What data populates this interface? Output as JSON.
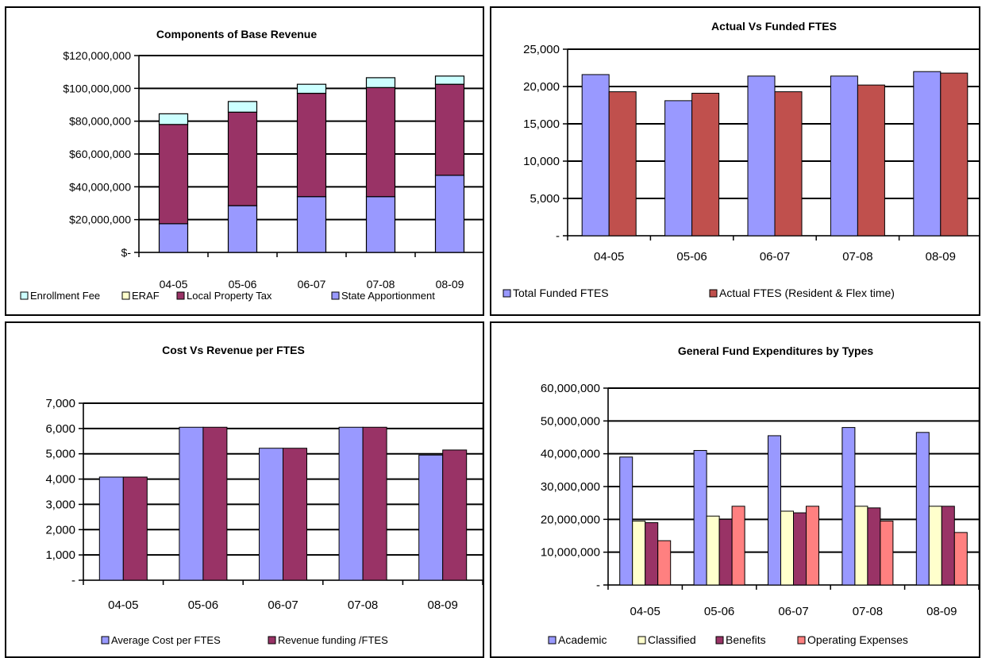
{
  "chart_data": [
    {
      "type": "bar",
      "stacked": true,
      "title": "Components of Base Revenue",
      "categories": [
        "04-05",
        "05-06",
        "06-07",
        "07-08",
        "08-09"
      ],
      "ylim": [
        0,
        120000000
      ],
      "yticks": [
        "$-",
        "$20,000,000",
        "$40,000,000",
        "$60,000,000",
        "$80,000,000",
        "$100,000,000",
        "$120,000,000"
      ],
      "series": [
        {
          "name": "State Apportionment",
          "color": "#9999ff",
          "values": [
            17500000,
            28500000,
            34000000,
            34000000,
            47000000
          ]
        },
        {
          "name": "Local Property Tax",
          "color": "#993366",
          "values": [
            60500000,
            57000000,
            63000000,
            66500000,
            55500000
          ]
        },
        {
          "name": "ERAF",
          "color": "#ffffcc",
          "values": [
            0,
            0,
            0,
            0,
            0
          ]
        },
        {
          "name": "Enrollment Fee",
          "color": "#ccffff",
          "values": [
            6500000,
            6500000,
            5500000,
            6000000,
            5000000
          ]
        }
      ],
      "legend": [
        "Enrollment Fee",
        "ERAF",
        "Local Property Tax",
        "State Apportionment"
      ],
      "legend_position": "bottom",
      "grid": true
    },
    {
      "type": "bar",
      "title": "Actual Vs Funded FTES",
      "categories": [
        "04-05",
        "05-06",
        "06-07",
        "07-08",
        "08-09"
      ],
      "ylim": [
        0,
        25000
      ],
      "yticks": [
        "-",
        "5,000",
        "10,000",
        "15,000",
        "20,000",
        "25,000"
      ],
      "series": [
        {
          "name": "Total Funded FTES",
          "color": "#9999ff",
          "values": [
            21600,
            18100,
            21400,
            21400,
            22000
          ]
        },
        {
          "name": "Actual FTES (Resident & Flex time)",
          "color": "#c0504d",
          "values": [
            19300,
            19100,
            19300,
            20200,
            21800
          ]
        }
      ],
      "legend_position": "bottom",
      "grid": true
    },
    {
      "type": "bar",
      "title": "Cost Vs  Revenue per FTES",
      "categories": [
        "04-05",
        "05-06",
        "06-07",
        "07-08",
        "08-09"
      ],
      "ylim": [
        0,
        7000
      ],
      "yticks": [
        "-",
        "1,000",
        "2,000",
        "3,000",
        "4,000",
        "5,000",
        "6,000",
        "7,000"
      ],
      "series": [
        {
          "name": "Average Cost per FTES",
          "color": "#9999ff",
          "values": [
            4080,
            6050,
            5220,
            6050,
            4950
          ]
        },
        {
          "name": "Revenue funding /FTES",
          "color": "#993366",
          "values": [
            4080,
            6050,
            5220,
            6050,
            5150
          ]
        }
      ],
      "legend_position": "bottom",
      "grid": true
    },
    {
      "type": "bar",
      "title": "General Fund Expenditures by Types",
      "categories": [
        "04-05",
        "05-06",
        "06-07",
        "07-08",
        "08-09"
      ],
      "ylim": [
        0,
        60000000
      ],
      "yticks": [
        "-",
        "10,000,000",
        "20,000,000",
        "30,000,000",
        "40,000,000",
        "50,000,000",
        "60,000,000"
      ],
      "series": [
        {
          "name": "Academic",
          "color": "#9999ff",
          "values": [
            39000000,
            41000000,
            45500000,
            48000000,
            46500000
          ]
        },
        {
          "name": "Classified",
          "color": "#ffffcc",
          "values": [
            19500000,
            21000000,
            22500000,
            24000000,
            24000000
          ]
        },
        {
          "name": "Benefits",
          "color": "#993366",
          "values": [
            19000000,
            20000000,
            22000000,
            23500000,
            24000000
          ]
        },
        {
          "name": "Operating Expenses",
          "color": "#ff8080",
          "values": [
            13500000,
            24000000,
            24000000,
            19500000,
            16000000
          ]
        }
      ],
      "legend_position": "bottom",
      "grid": true
    }
  ]
}
